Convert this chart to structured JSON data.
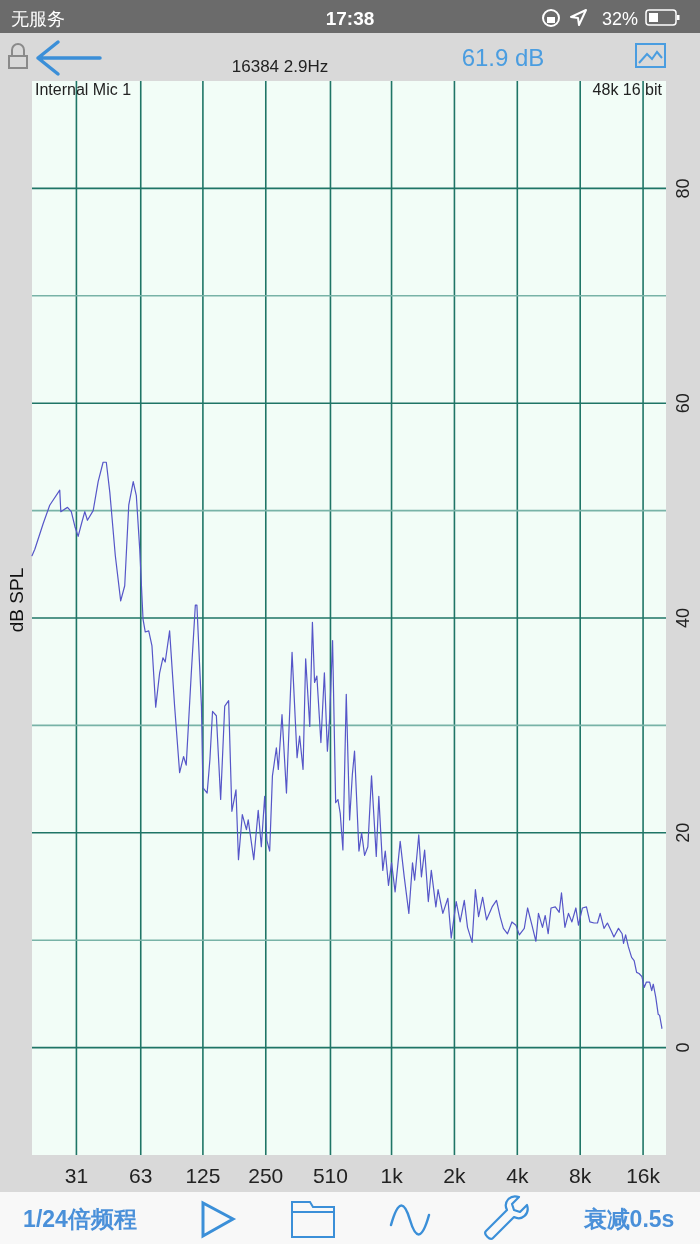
{
  "chart_data": {
    "type": "line",
    "ylabel": "dB SPL",
    "color": "#5656c8",
    "log": "x",
    "xlim": [
      19,
      20600
    ],
    "ylim": [
      -10,
      90
    ],
    "xticks": [
      31,
      63,
      125,
      250,
      510,
      {
        "value": 1000,
        "label": "1k"
      },
      {
        "value": 2000,
        "label": "2k"
      },
      {
        "value": 4000,
        "label": "4k"
      },
      {
        "value": 8000,
        "label": "8k"
      },
      {
        "value": 16000,
        "label": "16k"
      }
    ],
    "yticks": [
      0,
      {
        "value": 10,
        "label": null
      },
      20,
      {
        "value": 30,
        "label": null
      },
      40,
      {
        "value": 50,
        "label": null
      },
      60,
      {
        "value": 70,
        "label": null
      },
      80
    ],
    "grid": true,
    "x": [
      19.0,
      19.6,
      21.5,
      23.1,
      25.8,
      26.1,
      28.1,
      29.3,
      30.5,
      31.6,
      32.8,
      34.0,
      35.0,
      37.3,
      39.4,
      41.6,
      43.1,
      44.8,
      47.6,
      50.5,
      52.8,
      55.2,
      58.0,
      60.0,
      62.3,
      64.6,
      66.2,
      68.8,
      71.3,
      74.3,
      77.6,
      80.5,
      82.5,
      86.6,
      91.5,
      96.7,
      101,
      104,
      110,
      115,
      117,
      123,
      125,
      131,
      135,
      139,
      145,
      152,
      159,
      166,
      172,
      180,
      185,
      193,
      202,
      206,
      219,
      230,
      238,
      247,
      253,
      261,
      269,
      281,
      287,
      299,
      314,
      334,
      353,
      363,
      377,
      388,
      406,
      418,
      428,
      439,
      459,
      477,
      493,
      505,
      522,
      540,
      554,
      568,
      585,
      607,
      630,
      649,
      665,
      698,
      719,
      743,
      770,
      802,
      845,
      869,
      908,
      933,
      967,
      1000,
      1040,
      1100,
      1150,
      1210,
      1260,
      1290,
      1350,
      1390,
      1440,
      1500,
      1550,
      1630,
      1670,
      1760,
      1860,
      1930,
      2040,
      2130,
      2230,
      2310,
      2430,
      2520,
      2610,
      2730,
      2850,
      3030,
      3180,
      3310,
      3430,
      3590,
      3770,
      3940,
      4090,
      4320,
      4480,
      4700,
      4910,
      5050,
      5280,
      5440,
      5620,
      5800,
      6080,
      6350,
      6510,
      6760,
      7030,
      7300,
      7630,
      7850,
      8200,
      8570,
      8900,
      9330,
      9680,
      9970,
      10400,
      10800,
      11300,
      11600,
      12200,
      12700,
      12900,
      13200,
      13600,
      14100,
      14500,
      14900,
      15300,
      15800,
      16200,
      16600,
      17200,
      17600,
      17900,
      18400,
      18900,
      19200,
      19700
    ],
    "values": [
      45.8,
      46.4,
      48.8,
      50.5,
      51.9,
      49.9,
      50.3,
      49.9,
      48.5,
      47.6,
      48.8,
      49.9,
      49.1,
      50.0,
      52.7,
      54.5,
      54.5,
      51.7,
      45.8,
      41.6,
      43.0,
      50.5,
      52.7,
      51.4,
      46.4,
      39.9,
      38.7,
      38.8,
      37.4,
      31.7,
      34.9,
      36.3,
      35.9,
      38.8,
      31.8,
      25.6,
      27.1,
      26.3,
      34.9,
      41.2,
      41.2,
      31.8,
      24.2,
      23.7,
      26.8,
      31.3,
      30.9,
      23.1,
      31.8,
      32.3,
      22.0,
      24.0,
      17.5,
      21.7,
      20.3,
      21.2,
      17.5,
      22.1,
      18.7,
      23.4,
      19.3,
      18.3,
      25.3,
      27.9,
      25.9,
      31.0,
      23.7,
      36.8,
      27.0,
      29.0,
      25.9,
      36.2,
      29.9,
      39.6,
      34.0,
      34.6,
      28.4,
      34.9,
      27.6,
      30.6,
      37.9,
      22.8,
      23.1,
      21.8,
      18.4,
      32.9,
      21.2,
      25.4,
      27.6,
      18.3,
      20.0,
      17.9,
      18.7,
      25.3,
      17.8,
      23.4,
      16.5,
      18.3,
      15.1,
      17.2,
      14.5,
      19.2,
      15.9,
      12.5,
      17.2,
      15.6,
      19.8,
      15.9,
      18.4,
      13.6,
      16.5,
      13.1,
      14.7,
      12.5,
      13.9,
      10.2,
      13.6,
      11.7,
      13.7,
      11.2,
      9.8,
      14.7,
      12.2,
      14.0,
      11.9,
      13.1,
      13.7,
      12.2,
      11.1,
      10.6,
      11.7,
      11.4,
      10.5,
      11.1,
      13.0,
      11.4,
      9.9,
      12.5,
      11.2,
      12.3,
      10.6,
      13.0,
      13.1,
      12.6,
      14.4,
      11.2,
      12.5,
      11.7,
      13.0,
      11.4,
      13.0,
      13.1,
      11.7,
      11.6,
      11.6,
      12.5,
      11.1,
      11.6,
      10.8,
      10.3,
      11.1,
      10.6,
      9.7,
      10.5,
      9.4,
      8.4,
      8.1,
      7.0,
      6.9,
      6.6,
      5.6,
      6.1,
      6.1,
      5.3,
      5.9,
      4.7,
      3.1,
      3.0,
      1.8
    ],
    "annotations": [
      "16384 2.9Hz",
      "61.9 dB",
      "Internal Mic 1",
      "48k 16 bit",
      "1/24倍频程",
      "衰减0.5s",
      "无服务",
      "17:38",
      "32%"
    ]
  }
}
